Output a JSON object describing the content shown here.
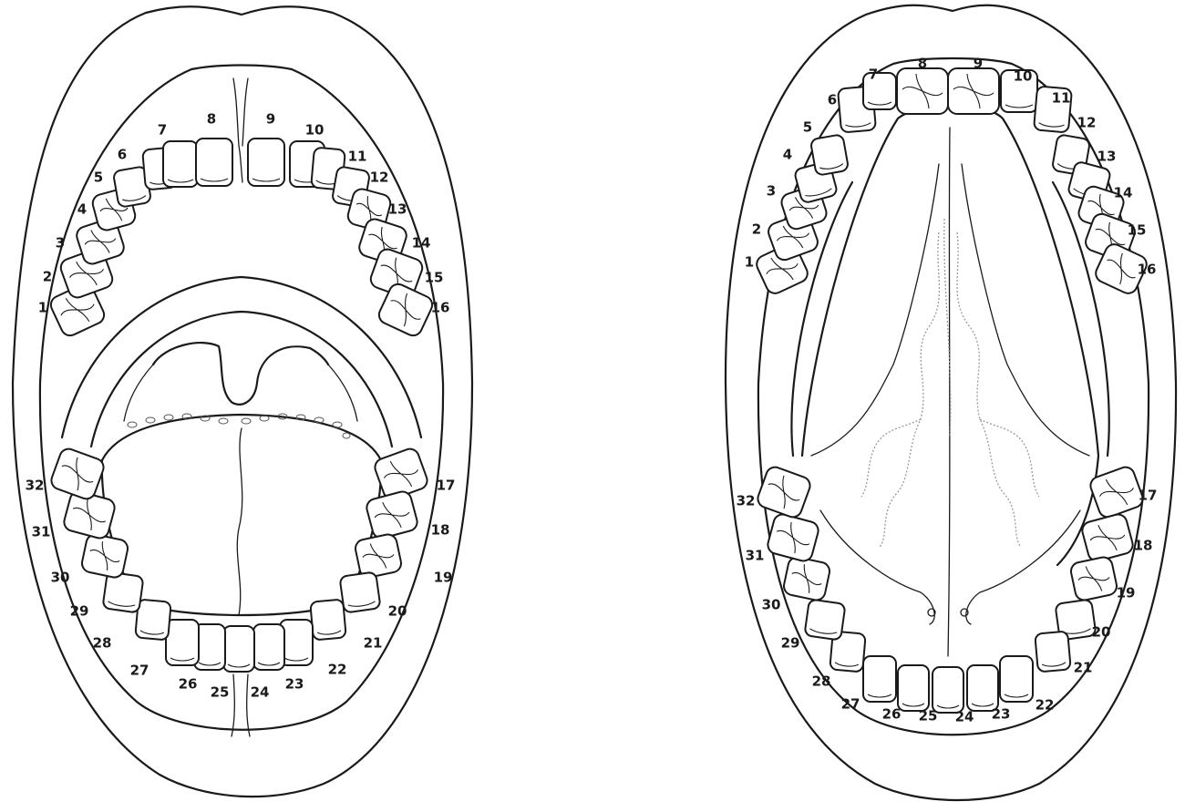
{
  "colors": {
    "line": "#1a1a1a",
    "background": "#ffffff",
    "vein": "#9a9a9a"
  },
  "diagrams": [
    {
      "id": "open-mouth-front",
      "teeth": [
        "1",
        "2",
        "3",
        "4",
        "5",
        "6",
        "7",
        "8",
        "9",
        "10",
        "11",
        "12",
        "13",
        "14",
        "15",
        "16",
        "17",
        "18",
        "19",
        "20",
        "21",
        "22",
        "23",
        "24",
        "25",
        "26",
        "27",
        "28",
        "29",
        "30",
        "31",
        "32"
      ]
    },
    {
      "id": "open-mouth-tongue-raised",
      "teeth": [
        "1",
        "2",
        "3",
        "4",
        "5",
        "6",
        "7",
        "8",
        "9",
        "10",
        "11",
        "12",
        "13",
        "14",
        "15",
        "16",
        "17",
        "18",
        "19",
        "20",
        "21",
        "22",
        "23",
        "24",
        "25",
        "26",
        "27",
        "28",
        "29",
        "30",
        "31",
        "32"
      ]
    }
  ]
}
